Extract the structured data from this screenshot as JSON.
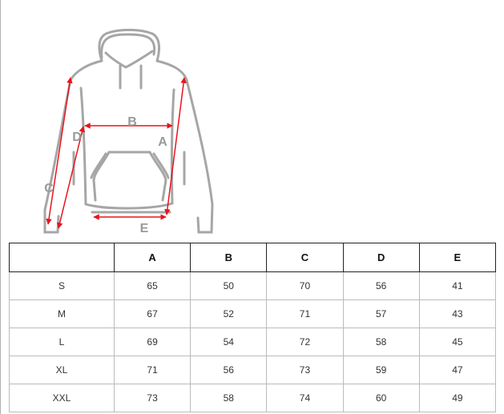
{
  "diagram": {
    "labels": {
      "A": "A",
      "B": "B",
      "C": "C",
      "D": "D",
      "E": "E"
    },
    "colors": {
      "outline": "#a6a6a6",
      "arrow": "#e8141c",
      "label": "#9a9a9a"
    }
  },
  "table": {
    "headers": [
      "",
      "A",
      "B",
      "C",
      "D",
      "E"
    ],
    "rows": [
      [
        "S",
        "65",
        "50",
        "70",
        "56",
        "41"
      ],
      [
        "M",
        "67",
        "52",
        "71",
        "57",
        "43"
      ],
      [
        "L",
        "69",
        "54",
        "72",
        "58",
        "45"
      ],
      [
        "XL",
        "71",
        "56",
        "73",
        "59",
        "47"
      ],
      [
        "XXL",
        "73",
        "58",
        "74",
        "60",
        "49"
      ]
    ]
  }
}
